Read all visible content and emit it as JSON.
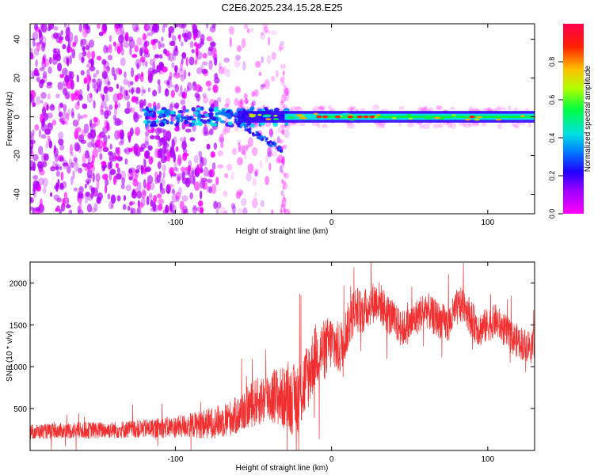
{
  "title": "C2E6.2025.234.15.28.E25",
  "colors": {
    "background": "#ffffff",
    "axis": "#000000",
    "snr_line": "#f03030",
    "scatter_purple": "#7a10f0",
    "colormap": [
      "#ff00ff",
      "#b000ff",
      "#3000ff",
      "#0070ff",
      "#00e0e0",
      "#00f040",
      "#c0f000",
      "#ffb000",
      "#ff2000",
      "#ff0040"
    ]
  },
  "chart_data": [
    {
      "type": "heatmap",
      "title": "C2E6.2025.234.15.28.E25",
      "xlabel": "Height of straight line (km)",
      "ylabel": "Frequency (Hz)",
      "xlim": [
        -193,
        130
      ],
      "ylim": [
        -50,
        48
      ],
      "xticks": [
        -100,
        0,
        100
      ],
      "xtick_labels": [
        "-100",
        "0",
        "100"
      ],
      "yticks": [
        -40,
        -20,
        0,
        20,
        40
      ],
      "ytick_labels": [
        "-40",
        "-20",
        "0",
        "20",
        "40"
      ],
      "colorbar": {
        "label": "Normalized spectral amplitude",
        "range": [
          0,
          1
        ],
        "ticks": [
          0.0,
          0.2,
          0.4,
          0.6,
          0.8
        ],
        "tick_labels": [
          "0.0",
          "0.2",
          "0.4",
          "0.6",
          "0.8"
        ]
      },
      "description_bands": [
        {
          "x_range": [
            -193,
            -70
          ],
          "freq_range": [
            -50,
            48
          ],
          "amplitude": "low-medium scattered"
        },
        {
          "x_range": [
            -70,
            -30
          ],
          "freq_range": [
            -50,
            48
          ],
          "amplitude": "low scattered"
        },
        {
          "x_range": [
            -120,
            -70
          ],
          "freq_range": [
            -10,
            6
          ],
          "amplitude": 0.3
        },
        {
          "x_range": [
            -60,
            -30
          ],
          "freq_range": [
            -5,
            6
          ],
          "amplitude": 0.45
        },
        {
          "x_range": [
            -30,
            130
          ],
          "freq_range": [
            -2,
            2
          ],
          "amplitude": 0.75
        }
      ]
    },
    {
      "type": "line",
      "xlabel": "Height of straight line (km)",
      "ylabel": "SNR (10 * v/v)",
      "xlim": [
        -193,
        130
      ],
      "ylim": [
        0,
        2250
      ],
      "xticks": [
        -100,
        0,
        100
      ],
      "xtick_labels": [
        "-100",
        "0",
        "100"
      ],
      "yticks": [
        500,
        1000,
        1500,
        2000
      ],
      "ytick_labels": [
        "500",
        "1000",
        "1500",
        "2000"
      ],
      "series": [
        {
          "name": "SNR",
          "x": [
            -193,
            -180,
            -160,
            -140,
            -120,
            -100,
            -90,
            -80,
            -70,
            -60,
            -55,
            -50,
            -45,
            -40,
            -35,
            -30,
            -25,
            -20,
            -15,
            -10,
            -5,
            0,
            5,
            10,
            15,
            20,
            25,
            30,
            35,
            40,
            45,
            50,
            55,
            60,
            65,
            70,
            75,
            80,
            85,
            90,
            95,
            100,
            105,
            110,
            115,
            120,
            125,
            130
          ],
          "values": [
            220,
            230,
            240,
            245,
            260,
            280,
            300,
            320,
            350,
            420,
            500,
            560,
            600,
            640,
            650,
            620,
            600,
            680,
            900,
            1150,
            1200,
            1300,
            1200,
            1450,
            1700,
            1650,
            1750,
            1800,
            1650,
            1550,
            1450,
            1500,
            1600,
            1700,
            1600,
            1550,
            1500,
            1700,
            1750,
            1550,
            1450,
            1500,
            1550,
            1450,
            1350,
            1300,
            1250,
            1300
          ],
          "spread": [
            90,
            90,
            100,
            100,
            110,
            130,
            150,
            180,
            200,
            230,
            250,
            280,
            300,
            320,
            350,
            380,
            420,
            450,
            420,
            380,
            360,
            340,
            320,
            300,
            280,
            260,
            250,
            240,
            240,
            230,
            220,
            220,
            220,
            220,
            220,
            220,
            220,
            220,
            220,
            220,
            220,
            200,
            200,
            200,
            200,
            200,
            200,
            200
          ]
        }
      ]
    }
  ]
}
